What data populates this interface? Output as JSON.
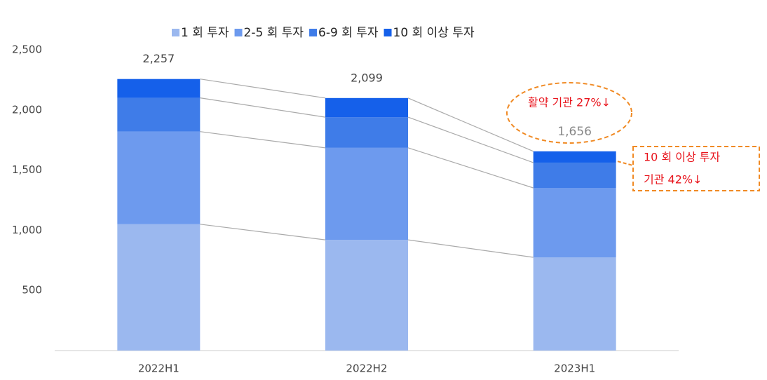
{
  "chart_data": {
    "type": "stacked_bar",
    "categories": [
      "2022H1",
      "2022H2",
      "2023H1"
    ],
    "series": [
      {
        "name": "1 회 투자",
        "color": "#9bb8ef",
        "values": [
          1050,
          920,
          775
        ]
      },
      {
        "name": "2-5 회 투자",
        "color": "#6d9aee",
        "values": [
          770,
          765,
          577
        ]
      },
      {
        "name": "6-9 회 투자",
        "color": "#3f7ce8",
        "values": [
          280,
          255,
          210
        ]
      },
      {
        "name": "10 회 이상 투자",
        "color": "#1560ea",
        "values": [
          157,
          159,
          94
        ]
      }
    ],
    "totals": {
      "values": [
        2257,
        2099,
        1656
      ],
      "value_labels": [
        "2,257",
        "2,099",
        "1,656"
      ]
    },
    "ylim": [
      0,
      2500
    ],
    "yticks": [
      500,
      {
        "value": 1000,
        "label": "1,000"
      },
      {
        "value": 1500,
        "label": "1,500"
      },
      {
        "value": 2000,
        "label": "2,000"
      },
      {
        "value": 2500,
        "label": "2,500"
      }
    ],
    "grid": false,
    "annotations": [
      "활약 기관 27%↓",
      "10 회 이상 투자",
      "기관 42%↓"
    ]
  }
}
